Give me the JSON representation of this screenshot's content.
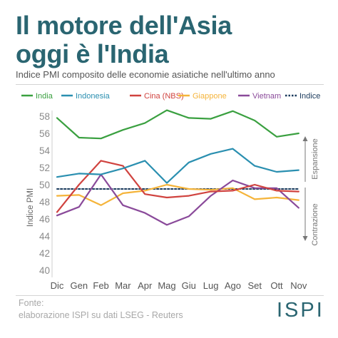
{
  "header": {
    "title_line1": "Il motore dell'Asia",
    "title_line2": "oggi è l'India",
    "subtitle": "Indice PMI composito delle economie asiatiche nell'ultimo anno"
  },
  "footer": {
    "source_label": "Fonte:",
    "source_text": "elaborazione ISPI su dati LSEG - Reuters",
    "logo": "ISPI"
  },
  "chart_data": {
    "type": "line",
    "ylabel": "Indice PMI",
    "ylim": [
      40,
      59
    ],
    "yticks": [
      40,
      42,
      44,
      46,
      48,
      50,
      52,
      54,
      56,
      58
    ],
    "categories": [
      "Dic",
      "Gen",
      "Feb",
      "Mar",
      "Apr",
      "Mag",
      "Giu",
      "Lug",
      "Ago",
      "Set",
      "Ott",
      "Nov"
    ],
    "grid": false,
    "legend_position": "top",
    "annotations": {
      "expansion": "Espansione",
      "contraction": "Contrazione"
    },
    "series": [
      {
        "name": "India",
        "color": "#3aa040",
        "dashed": false,
        "values": [
          57.8,
          55.5,
          55.4,
          56.4,
          57.2,
          58.7,
          57.8,
          57.7,
          58.6,
          57.5,
          55.6,
          56.0
        ]
      },
      {
        "name": "Indonesia",
        "color": "#2a8fb0",
        "dashed": false,
        "values": [
          50.9,
          51.3,
          51.2,
          51.9,
          52.8,
          50.2,
          52.6,
          53.6,
          54.2,
          52.2,
          51.5,
          51.7
        ]
      },
      {
        "name": "Cina (NBS)",
        "color": "#d0433f",
        "dashed": false,
        "values": [
          46.8,
          50.0,
          52.8,
          52.2,
          48.9,
          48.5,
          48.7,
          49.2,
          49.3,
          50.0,
          49.3,
          49.2
        ]
      },
      {
        "name": "Giappone",
        "color": "#f5b43a",
        "dashed": false,
        "values": [
          48.7,
          48.8,
          47.6,
          49.0,
          49.3,
          50.0,
          49.5,
          49.4,
          49.6,
          48.3,
          48.5,
          48.2
        ]
      },
      {
        "name": "Vietnam",
        "color": "#8a4a9a",
        "dashed": false,
        "values": [
          46.4,
          47.4,
          51.2,
          47.6,
          46.7,
          45.3,
          46.3,
          48.7,
          50.5,
          49.6,
          49.6,
          47.3
        ]
      },
      {
        "name": "Indice",
        "color": "#1a3a5c",
        "dashed": true,
        "values": [
          49.5,
          49.5,
          49.5,
          49.5,
          49.5,
          49.5,
          49.5,
          49.5,
          49.5,
          49.5,
          49.5,
          49.5
        ]
      }
    ]
  }
}
